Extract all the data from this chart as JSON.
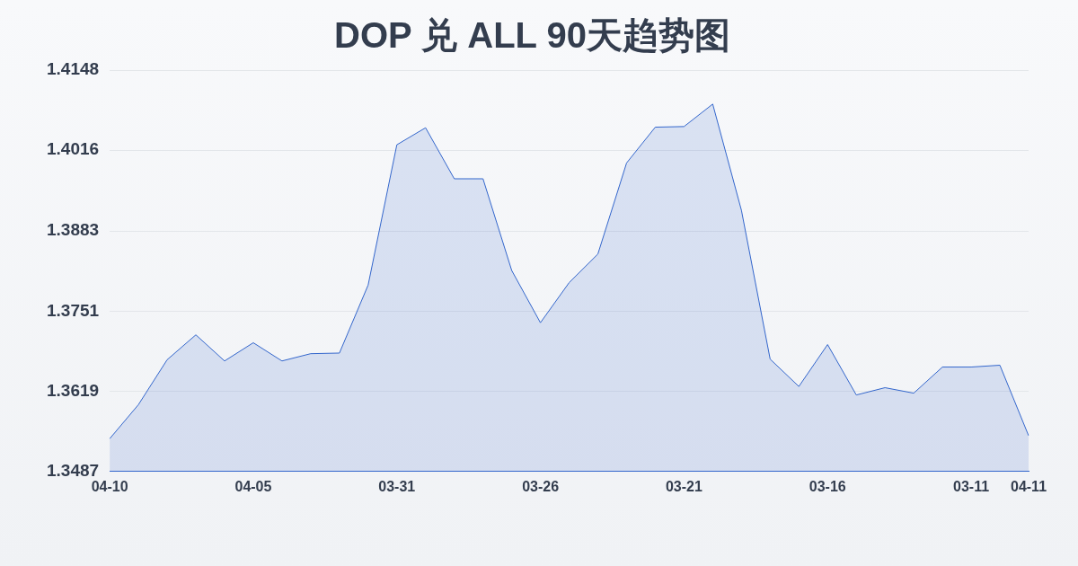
{
  "chart_data": {
    "type": "area",
    "title": "DOP 兑 ALL 90天趋势图",
    "categories": [
      "04-10",
      null,
      null,
      null,
      null,
      "04-05",
      null,
      null,
      null,
      null,
      "03-31",
      null,
      null,
      null,
      null,
      "03-26",
      null,
      null,
      null,
      null,
      "03-21",
      null,
      null,
      null,
      null,
      "03-16",
      null,
      null,
      null,
      null,
      "03-11",
      null,
      "04-11"
    ],
    "series": [
      {
        "color": "#3366cc",
        "values": [
          1.3541,
          1.3597,
          1.3671,
          1.3712,
          1.3669,
          1.3699,
          1.3669,
          1.3681,
          1.3682,
          1.3794,
          1.4025,
          1.4053,
          1.3969,
          1.3969,
          1.3818,
          1.3732,
          1.3798,
          1.3845,
          1.3995,
          1.4054,
          1.4055,
          1.4092,
          1.3917,
          1.3672,
          1.3627,
          1.3696,
          1.3613,
          1.3625,
          1.3616,
          1.3659,
          1.3659,
          1.3662,
          1.3546
        ]
      }
    ],
    "ylim": [
      1.3487,
      1.4148
    ],
    "yticks": [
      1.3487,
      1.3619,
      1.3751,
      1.3883,
      1.4016,
      1.4148
    ],
    "grid": "y",
    "legend": false,
    "marker": "none"
  }
}
